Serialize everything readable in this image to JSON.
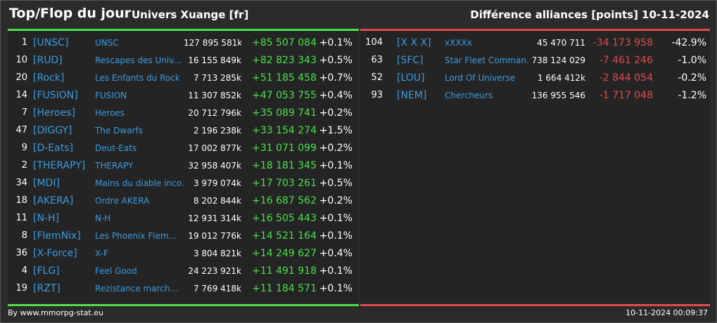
{
  "header": {
    "title": "Top/Flop du jour",
    "universe": "Univers Xuange [fr]",
    "subtitle": "Différence alliances [points]",
    "date": "10-11-2024"
  },
  "colors": {
    "positive": "#4be04b",
    "negative": "#e04b4b",
    "tag": "#3b9be0",
    "top_bar": "#4be04b",
    "flop_bar": "#e04b4b"
  },
  "top": [
    {
      "rank": "1",
      "tag": "[UNSC]",
      "name": "UNSC",
      "points": "127 895 581k",
      "delta": "+85 507 084",
      "pct": "+0.1%"
    },
    {
      "rank": "10",
      "tag": "[RUD]",
      "name": "Rescapes des Univ...",
      "points": "16 155 849k",
      "delta": "+82 823 343",
      "pct": "+0.5%"
    },
    {
      "rank": "20",
      "tag": "[Rock]",
      "name": "Les Enfants du Rock",
      "points": "7 713 285k",
      "delta": "+51 185 458",
      "pct": "+0.7%"
    },
    {
      "rank": "14",
      "tag": "[FUSION]",
      "name": "FUSION",
      "points": "11 307 852k",
      "delta": "+47 053 755",
      "pct": "+0.4%"
    },
    {
      "rank": "7",
      "tag": "[Heroes]",
      "name": "Heroes",
      "points": "20 712 796k",
      "delta": "+35 089 741",
      "pct": "+0.2%"
    },
    {
      "rank": "47",
      "tag": "[DIGGY]",
      "name": "The Dwarfs",
      "points": "2 196 238k",
      "delta": "+33 154 274",
      "pct": "+1.5%"
    },
    {
      "rank": "9",
      "tag": "[D-Eats]",
      "name": "Deut-Eats",
      "points": "17 002 877k",
      "delta": "+31 071 099",
      "pct": "+0.2%"
    },
    {
      "rank": "2",
      "tag": "[THERAPY]",
      "name": "THERAPY",
      "points": "32 958 407k",
      "delta": "+18 181 345",
      "pct": "+0.1%"
    },
    {
      "rank": "34",
      "tag": "[MDI]",
      "name": "Mains du diable inco...",
      "points": "3 979 074k",
      "delta": "+17 703 261",
      "pct": "+0.5%"
    },
    {
      "rank": "18",
      "tag": "[AKERA]",
      "name": "Ordre AKERA",
      "points": "8 202 844k",
      "delta": "+16 687 562",
      "pct": "+0.2%"
    },
    {
      "rank": "11",
      "tag": "[N-H]",
      "name": "N-H",
      "points": "12 931 314k",
      "delta": "+16 505 443",
      "pct": "+0.1%"
    },
    {
      "rank": "8",
      "tag": "[FlemNix]",
      "name": "Les Phoenix Flem...",
      "points": "19 012 776k",
      "delta": "+14 521 164",
      "pct": "+0.1%"
    },
    {
      "rank": "36",
      "tag": "[X-Force]",
      "name": "X-F",
      "points": "3 804 821k",
      "delta": "+14 249 627",
      "pct": "+0.4%"
    },
    {
      "rank": "4",
      "tag": "[FLG]",
      "name": "Feel Good",
      "points": "24 223 921k",
      "delta": "+11 491 918",
      "pct": "+0.1%"
    },
    {
      "rank": "19",
      "tag": "[RZT]",
      "name": "Rezistance march...",
      "points": "7 769 418k",
      "delta": "+11 184 571",
      "pct": "+0.1%"
    }
  ],
  "flop": [
    {
      "rank": "104",
      "tag": "[X X X]",
      "name": "xXXXx",
      "points": "45 470 711",
      "delta": "-34 173 958",
      "pct": "-42.9%"
    },
    {
      "rank": "63",
      "tag": "[SFC]",
      "name": "Star Fleet Comman...",
      "points": "738 124 029",
      "delta": "-7 461 246",
      "pct": "-1.0%"
    },
    {
      "rank": "52",
      "tag": "[LOU]",
      "name": "Lord Of Universe",
      "points": "1 664 412k",
      "delta": "-2 844 054",
      "pct": "-0.2%"
    },
    {
      "rank": "93",
      "tag": "[NEM]",
      "name": "Chercheurs",
      "points": "136 955 546",
      "delta": "-1 717 048",
      "pct": "-1.2%"
    }
  ],
  "footer": {
    "source": "By www.mmorpg-stat.eu",
    "timestamp": "10-11-2024 00:09:37"
  }
}
